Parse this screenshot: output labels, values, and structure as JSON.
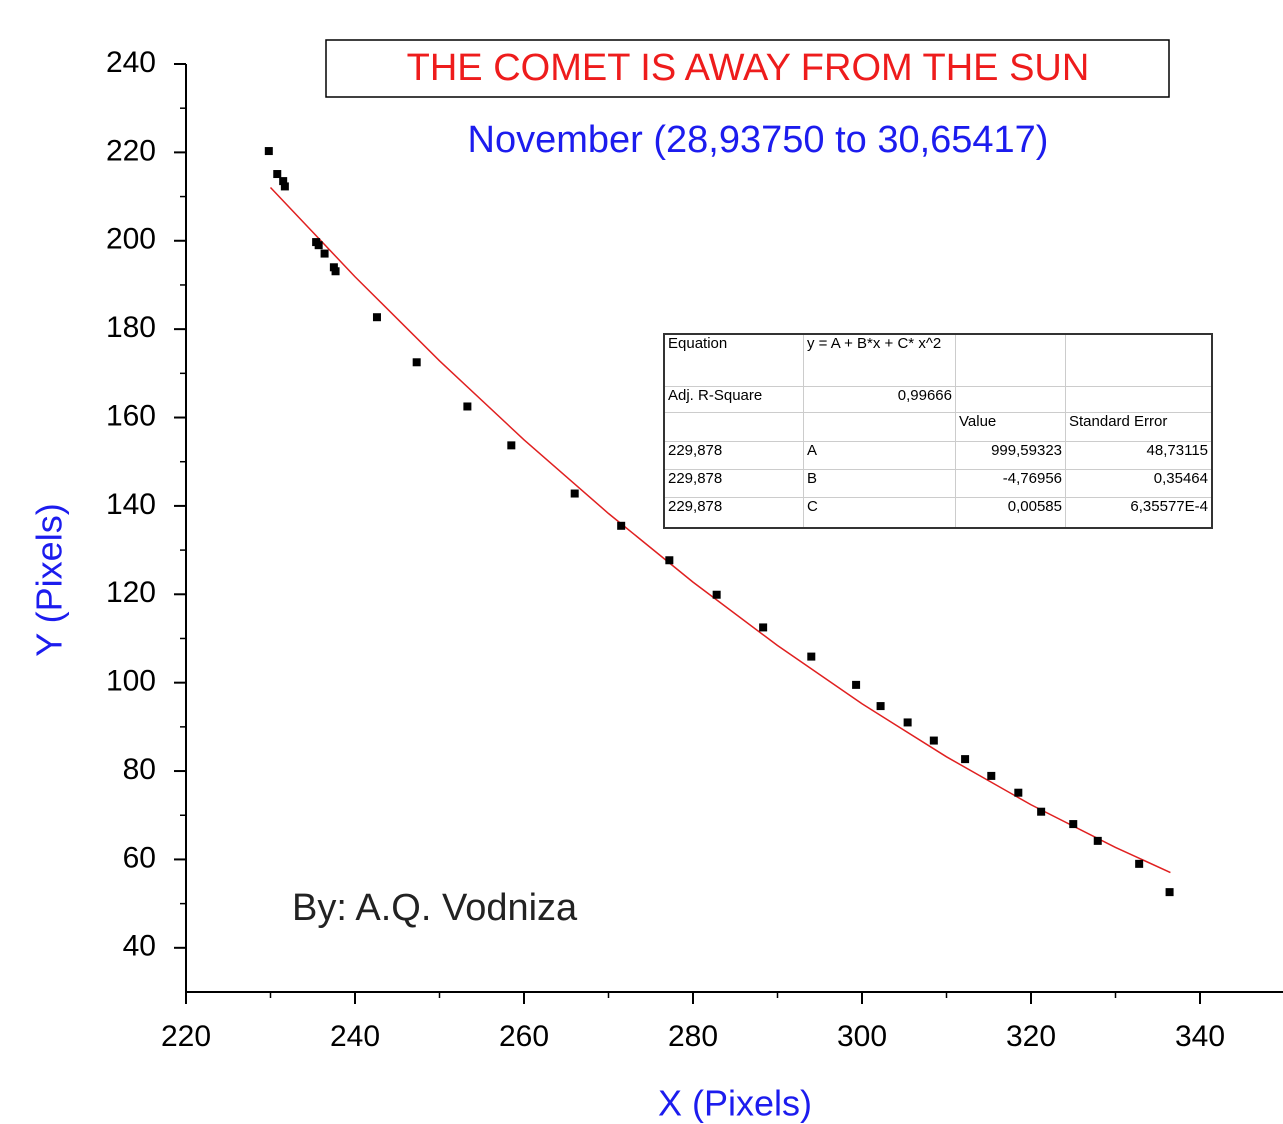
{
  "chart_data": {
    "type": "scatter",
    "title": "THE COMET IS AWAY FROM THE SUN",
    "subtitle": "November (28,93750 to 30,65417)",
    "x_label": "X (Pixels)",
    "y_label": "Y (Pixels)",
    "annotation": "By: A.Q. Vodniza",
    "xlim": [
      220,
      350
    ],
    "ylim": [
      30,
      240
    ],
    "xticks": [
      220,
      240,
      260,
      280,
      300,
      320,
      340
    ],
    "yticks": [
      40,
      60,
      80,
      100,
      120,
      140,
      160,
      180,
      200,
      220,
      240
    ],
    "series": [
      {
        "color": "#000000",
        "x": [
          229.8,
          230.8,
          231.5,
          231.7,
          235.4,
          235.7,
          236.4,
          237.5,
          237.7,
          242.6,
          247.3,
          253.3,
          258.5,
          266.0,
          271.5,
          277.2,
          282.8,
          288.3,
          294.0,
          299.3,
          302.2,
          305.4,
          308.5,
          312.2,
          315.3,
          318.5,
          321.2,
          325.0,
          327.9,
          332.8,
          336.4
        ],
        "values": [
          220.3,
          215.1,
          213.5,
          212.3,
          199.7,
          199.0,
          197.1,
          194.0,
          193.1,
          182.7,
          172.5,
          162.5,
          153.7,
          142.8,
          135.5,
          127.7,
          119.9,
          112.5,
          105.9,
          99.5,
          94.7,
          91.0,
          86.9,
          82.7,
          78.9,
          75.1,
          70.8,
          68.0,
          64.2,
          59.0,
          52.6
        ]
      }
    ],
    "fit": {
      "color": "#e02020",
      "x": [
        230,
        240,
        250,
        260,
        270,
        280,
        290,
        300,
        310,
        320,
        330,
        336.5
      ],
      "values": [
        212.06,
        191.86,
        172.83,
        154.96,
        138.28,
        122.75,
        108.41,
        95.22,
        83.22,
        72.37,
        62.71,
        57.04
      ]
    },
    "fit_table": {
      "rows": [
        [
          "Equation",
          "y = A + B*x + C* x^2",
          null,
          null
        ],
        [
          "Adj. R-Square",
          "0,99666",
          null,
          null
        ],
        [
          null,
          null,
          "Value",
          "Standard Error"
        ],
        [
          "229,878",
          "A",
          "999,59323",
          "48,73115"
        ],
        [
          "229,878",
          "B",
          "-4,76956",
          "0,35464"
        ],
        [
          "229,878",
          "C",
          "0,00585",
          "6,35577E-4"
        ]
      ]
    }
  }
}
